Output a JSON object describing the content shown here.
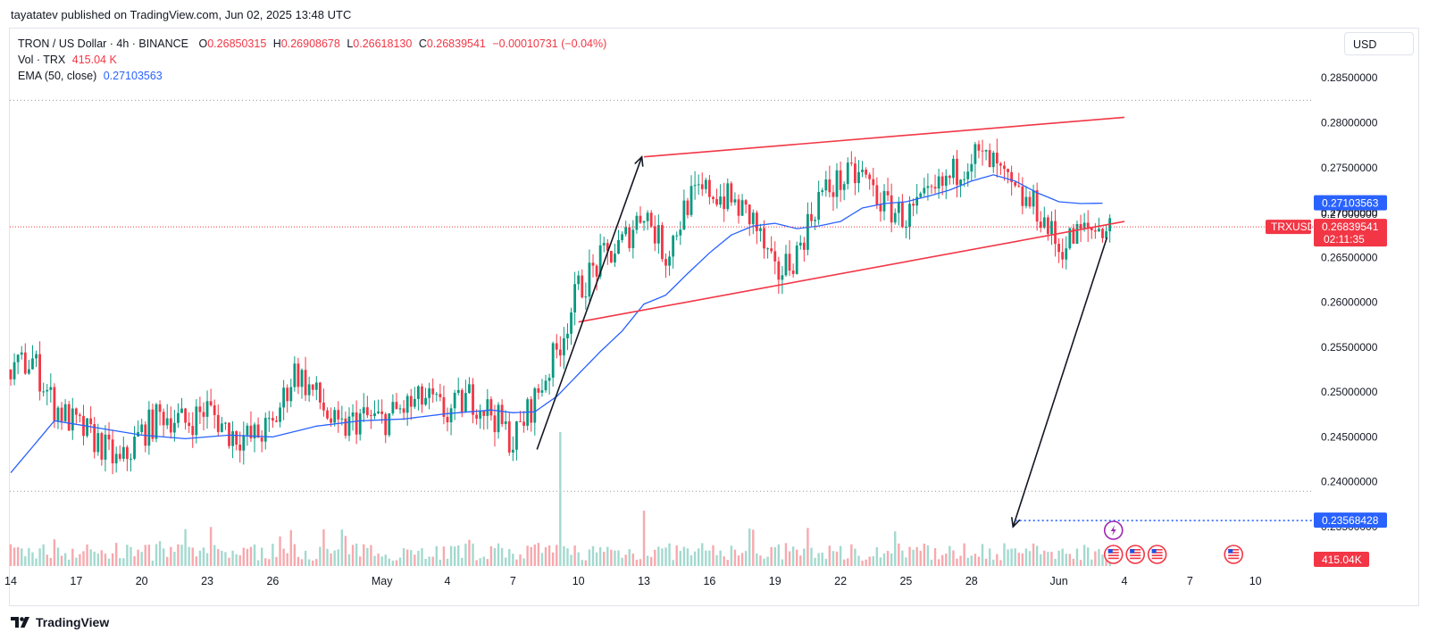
{
  "header": {
    "published": "tayatatev published on TradingView.com, Jun 02, 2025 13:48 UTC"
  },
  "legend": {
    "title": "TRON / US Dollar · 4h · BINANCE",
    "o_label": "O",
    "o": "0.26850315",
    "h_label": "H",
    "h": "0.26908678",
    "l_label": "L",
    "l": "0.26618130",
    "c_label": "C",
    "c": "0.26839541",
    "change": "−0.00010731 (−0.04%)",
    "vol_label": "Vol · TRX",
    "vol": "415.04 K",
    "ema_label": "EMA (50, close)",
    "ema": "0.27103563"
  },
  "currency": "USD",
  "footer": {
    "brand": "TradingView"
  },
  "chart_data": {
    "type": "candlestick",
    "symbol": "TRXUSD",
    "interval": "4h",
    "ylim": [
      0.2345,
      0.2885
    ],
    "y_ticks": [
      "0.28500000",
      "0.28000000",
      "0.27500000",
      "0.27000000",
      "0.26500000",
      "0.26000000",
      "0.25500000",
      "0.25000000",
      "0.24500000",
      "0.24000000",
      "0.23500000"
    ],
    "x_ticks": [
      {
        "label": "14",
        "day": 0
      },
      {
        "label": "17",
        "day": 3
      },
      {
        "label": "20",
        "day": 6
      },
      {
        "label": "23",
        "day": 9
      },
      {
        "label": "26",
        "day": 12
      },
      {
        "label": "May",
        "day": 17
      },
      {
        "label": "4",
        "day": 20
      },
      {
        "label": "7",
        "day": 23
      },
      {
        "label": "10",
        "day": 26
      },
      {
        "label": "13",
        "day": 29
      },
      {
        "label": "16",
        "day": 32
      },
      {
        "label": "19",
        "day": 35
      },
      {
        "label": "22",
        "day": 38
      },
      {
        "label": "25",
        "day": 41
      },
      {
        "label": "28",
        "day": 44
      },
      {
        "label": "Jun",
        "day": 48
      },
      {
        "label": "4",
        "day": 51
      },
      {
        "label": "7",
        "day": 54
      },
      {
        "label": "10",
        "day": 57
      }
    ],
    "close_anchors": [
      [
        0,
        0.2525
      ],
      [
        1,
        0.2535
      ],
      [
        2,
        0.2485
      ],
      [
        3,
        0.2462
      ],
      [
        4,
        0.2445
      ],
      [
        5,
        0.2418
      ],
      [
        6,
        0.2455
      ],
      [
        7,
        0.2476
      ],
      [
        8,
        0.2465
      ],
      [
        9,
        0.2482
      ],
      [
        10,
        0.2455
      ],
      [
        11,
        0.2448
      ],
      [
        12,
        0.2462
      ],
      [
        13,
        0.2525
      ],
      [
        14,
        0.2495
      ],
      [
        15,
        0.2455
      ],
      [
        16,
        0.2472
      ],
      [
        17,
        0.2468
      ],
      [
        18,
        0.2482
      ],
      [
        19,
        0.2492
      ],
      [
        20,
        0.2475
      ],
      [
        21,
        0.2495
      ],
      [
        22,
        0.2478
      ],
      [
        23,
        0.2445
      ],
      [
        24,
        0.2492
      ],
      [
        25,
        0.2545
      ],
      [
        26,
        0.2615
      ],
      [
        27,
        0.2645
      ],
      [
        28,
        0.2665
      ],
      [
        29,
        0.2705
      ],
      [
        30,
        0.2652
      ],
      [
        31,
        0.2712
      ],
      [
        32,
        0.2725
      ],
      [
        33,
        0.2712
      ],
      [
        34,
        0.2692
      ],
      [
        35,
        0.2628
      ],
      [
        36,
        0.2655
      ],
      [
        37,
        0.2718
      ],
      [
        38,
        0.2735
      ],
      [
        39,
        0.2742
      ],
      [
        40,
        0.2708
      ],
      [
        41,
        0.2695
      ],
      [
        42,
        0.2712
      ],
      [
        43,
        0.2738
      ],
      [
        44,
        0.2765
      ],
      [
        45,
        0.2752
      ],
      [
        46,
        0.2718
      ],
      [
        47,
        0.2705
      ],
      [
        48,
        0.266
      ],
      [
        49,
        0.2678
      ],
      [
        50,
        0.2684
      ]
    ],
    "ema_anchors": [
      [
        0,
        0.241
      ],
      [
        2,
        0.2468
      ],
      [
        4,
        0.246
      ],
      [
        6,
        0.2452
      ],
      [
        8,
        0.2448
      ],
      [
        10,
        0.2452
      ],
      [
        12,
        0.245
      ],
      [
        14,
        0.2462
      ],
      [
        16,
        0.2468
      ],
      [
        18,
        0.247
      ],
      [
        20,
        0.2476
      ],
      [
        22,
        0.248
      ],
      [
        23,
        0.2477
      ],
      [
        24,
        0.2478
      ],
      [
        25,
        0.2495
      ],
      [
        27,
        0.2545
      ],
      [
        28,
        0.2568
      ],
      [
        29,
        0.2598
      ],
      [
        30,
        0.2608
      ],
      [
        31,
        0.2632
      ],
      [
        32,
        0.2655
      ],
      [
        33,
        0.2675
      ],
      [
        34,
        0.2685
      ],
      [
        35,
        0.2688
      ],
      [
        36,
        0.2682
      ],
      [
        37,
        0.2685
      ],
      [
        38,
        0.269
      ],
      [
        39,
        0.2705
      ],
      [
        40,
        0.271
      ],
      [
        41,
        0.2712
      ],
      [
        42,
        0.2718
      ],
      [
        43,
        0.2725
      ],
      [
        44,
        0.2735
      ],
      [
        45,
        0.2742
      ],
      [
        46,
        0.2735
      ],
      [
        47,
        0.2722
      ],
      [
        48,
        0.2712
      ],
      [
        49,
        0.271
      ],
      [
        50,
        0.27103563
      ]
    ],
    "volume": {
      "current": "415.04K",
      "spike_day": 25.2
    },
    "trendlines": [
      {
        "color": "#f23645",
        "from": [
          29.0,
          0.2762
        ],
        "to": [
          51.0,
          0.2806
        ]
      },
      {
        "color": "#f23645",
        "from": [
          26.0,
          0.2578
        ],
        "to": [
          51.0,
          0.269
        ]
      },
      {
        "color": "#131722",
        "from": [
          24.1,
          0.2436
        ],
        "to": [
          28.9,
          0.2762
        ]
      },
      {
        "color": "#131722",
        "from": [
          50.2,
          0.2672
        ],
        "to": [
          45.9,
          0.23498
        ]
      }
    ],
    "target_line": {
      "from_day": 46.0,
      "to_day": 60.5,
      "value": 0.23568428
    },
    "h_dotted_top": 0.2825,
    "h_dotted_bottom": 0.23895,
    "price_line": 0.26839541,
    "tags": {
      "ema": "0.27103563",
      "symbol": "TRXUSD",
      "price": "0.26839541",
      "countdown": "02:11:35",
      "target": "0.23568428",
      "volume": "415.04K",
      "hidden_tick": "0.27000000"
    },
    "colors": {
      "up": "#089981",
      "down": "#f23645",
      "ema": "#2962ff",
      "vol_up": "#a3d9cf",
      "vol_down": "#f7a9ae"
    },
    "events": {
      "lightning_day": 50.5,
      "flag_days": [
        50.5,
        51.5,
        52.5,
        56.0
      ]
    }
  }
}
